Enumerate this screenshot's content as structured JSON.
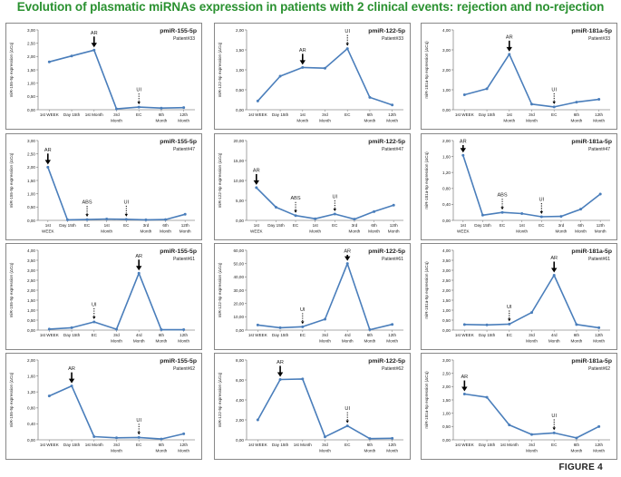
{
  "figure": {
    "title": "Evolution of plasmatic miRNAs expression in patients with 2 clinical events: rejection and no-rejection",
    "label": "FIGURE 4"
  },
  "colors": {
    "line": "#4a7ebb",
    "title": "#2a9130",
    "frame": "#888888",
    "text": "#222222"
  },
  "chart_data": [
    {
      "type": "line",
      "title": "pmiR-155-5p",
      "patient": "Patient#33",
      "ylabel": "miR-155-5p expression (ΔCq)",
      "ylim": [
        0,
        3
      ],
      "yticks": [
        "0,00",
        "0,50",
        "1,00",
        "1,50",
        "2,00",
        "2,50",
        "3,00"
      ],
      "categories": [
        [
          "1st WEEK"
        ],
        [
          "Day 15th"
        ],
        [
          "1st Month"
        ],
        [
          "3rd",
          "Month"
        ],
        [
          "EC"
        ],
        [
          "6th",
          "Month"
        ],
        [
          "12th",
          "Month"
        ]
      ],
      "values": [
        1.8,
        2.02,
        2.24,
        0.03,
        0.1,
        0.06,
        0.08
      ],
      "annotations": [
        {
          "label": "AR",
          "index": 2,
          "dashed": false
        },
        {
          "label": "UI",
          "index": 4,
          "dashed": true
        }
      ]
    },
    {
      "type": "line",
      "title": "pmiR-122-5p",
      "patient": "Patient#33",
      "ylabel": "miR-122-5p expression (ΔCq)",
      "ylim": [
        0,
        2
      ],
      "yticks": [
        "0,00",
        "0,50",
        "1,00",
        "1,50",
        "2,00"
      ],
      "categories": [
        [
          "1st WEEK"
        ],
        [
          "Day 15th"
        ],
        [
          "1st",
          "Month"
        ],
        [
          "3rd",
          "Month"
        ],
        [
          "EC"
        ],
        [
          "6th",
          "Month"
        ],
        [
          "12th",
          "Month"
        ]
      ],
      "values": [
        0.22,
        0.84,
        1.06,
        1.04,
        1.53,
        0.31,
        0.12
      ],
      "annotations": [
        {
          "label": "AR",
          "index": 2,
          "dashed": false
        },
        {
          "label": "UI",
          "index": 4,
          "dashed": true
        }
      ]
    },
    {
      "type": "line",
      "title": "pmiR-181a-5p",
      "patient": "Patient#33",
      "ylabel": "miR-181a-5p expression (ΔCq)",
      "ylim": [
        0,
        4
      ],
      "yticks": [
        "0,00",
        "1,00",
        "2,00",
        "3,00",
        "4,00"
      ],
      "categories": [
        [
          "1st WEEK"
        ],
        [
          "Day 15th"
        ],
        [
          "1st",
          "Month"
        ],
        [
          "3rd",
          "Month"
        ],
        [
          "EC"
        ],
        [
          "6th",
          "Month"
        ],
        [
          "12th",
          "Month"
        ]
      ],
      "values": [
        0.75,
        1.05,
        2.78,
        0.28,
        0.14,
        0.38,
        0.52
      ],
      "annotations": [
        {
          "label": "AR",
          "index": 2,
          "dashed": false
        },
        {
          "label": "UI",
          "index": 4,
          "dashed": true
        }
      ]
    },
    {
      "type": "line",
      "title": "pmiR-155-5p",
      "patient": "Patient#47",
      "ylabel": "miR-155-5p expression (ΔCq)",
      "ylim": [
        0,
        3
      ],
      "yticks": [
        "0,00",
        "0,50",
        "1,00",
        "1,50",
        "2,00",
        "2,50",
        "3,00"
      ],
      "categories": [
        [
          "1st",
          "WEEK"
        ],
        [
          "Day 15th"
        ],
        [
          "EC"
        ],
        [
          "1st",
          "Month"
        ],
        [
          "EC"
        ],
        [
          "3rd",
          "Month"
        ],
        [
          "6th",
          "Month"
        ],
        [
          "12th",
          "Month"
        ]
      ],
      "values": [
        2.0,
        0.02,
        0.03,
        0.05,
        0.04,
        0.02,
        0.03,
        0.23
      ],
      "annotations": [
        {
          "label": "AR",
          "index": 0,
          "dashed": false
        },
        {
          "label": "ABS",
          "index": 2,
          "dashed": true
        },
        {
          "label": "UI",
          "index": 4,
          "dashed": true
        }
      ]
    },
    {
      "type": "line",
      "title": "pmiR-122-5p",
      "patient": "Patient#47",
      "ylabel": "miR-122-5p expression (ΔCq)",
      "ylim": [
        0,
        20
      ],
      "yticks": [
        "0,00",
        "5,00",
        "10,00",
        "15,00",
        "20,00"
      ],
      "categories": [
        [
          "1st",
          "WEEK"
        ],
        [
          "Day 15th"
        ],
        [
          "EC"
        ],
        [
          "1st",
          "Month"
        ],
        [
          "EC"
        ],
        [
          "3rd",
          "Month"
        ],
        [
          "6th",
          "Month"
        ],
        [
          "12th",
          "Month"
        ]
      ],
      "values": [
        8.2,
        3.3,
        1.2,
        0.4,
        1.6,
        0.3,
        2.2,
        3.8
      ],
      "annotations": [
        {
          "label": "AR",
          "index": 0,
          "dashed": false
        },
        {
          "label": "ABS",
          "index": 2,
          "dashed": true
        },
        {
          "label": "UI",
          "index": 4,
          "dashed": true
        }
      ]
    },
    {
      "type": "line",
      "title": "pmiR-181a-5p",
      "patient": "Patient#47",
      "ylabel": "miR-181a-5p expression (ΔCq)",
      "ylim": [
        0,
        2
      ],
      "yticks": [
        "0,00",
        "0,40",
        "0,80",
        "1,20",
        "1,60",
        "2,00"
      ],
      "categories": [
        [
          "1st",
          "WEEK"
        ],
        [
          "Day 15th"
        ],
        [
          "EC"
        ],
        [
          "1st",
          "Month"
        ],
        [
          "EC"
        ],
        [
          "3rd",
          "Month"
        ],
        [
          "6th",
          "Month"
        ],
        [
          "12th",
          "Month"
        ]
      ],
      "values": [
        1.63,
        0.13,
        0.2,
        0.17,
        0.09,
        0.1,
        0.28,
        0.66
      ],
      "annotations": [
        {
          "label": "AR",
          "index": 0,
          "dashed": false
        },
        {
          "label": "ABS",
          "index": 2,
          "dashed": true
        },
        {
          "label": "UI",
          "index": 4,
          "dashed": true
        }
      ]
    },
    {
      "type": "line",
      "title": "pmiR-155-5p",
      "patient": "Patient#61",
      "ylabel": "miR-155-5p expression (ΔCq)",
      "ylim": [
        0,
        4
      ],
      "yticks": [
        "0,00",
        "0,50",
        "1,00",
        "1,50",
        "2,00",
        "2,50",
        "3,00",
        "3,50",
        "4,00"
      ],
      "categories": [
        [
          "1st WEEK"
        ],
        [
          "Day 15th"
        ],
        [
          "EC"
        ],
        [
          "3rd",
          "Month"
        ],
        [
          "4rd",
          "Month"
        ],
        [
          "6th",
          "Month"
        ],
        [
          "12th",
          "Month"
        ]
      ],
      "values": [
        0.05,
        0.12,
        0.41,
        0.04,
        2.85,
        0.02,
        0.02
      ],
      "annotations": [
        {
          "label": "UI",
          "index": 2,
          "dashed": true
        },
        {
          "label": "AR",
          "index": 4,
          "dashed": false
        }
      ]
    },
    {
      "type": "line",
      "title": "pmiR-122-5p",
      "patient": "Patient#61",
      "ylabel": "miR-122-5p expression (ΔCq)",
      "ylim": [
        0,
        60
      ],
      "yticks": [
        "0,00",
        "10,00",
        "20,00",
        "30,00",
        "40,00",
        "50,00",
        "60,00"
      ],
      "categories": [
        [
          "1st WEEK"
        ],
        [
          "Day 15th"
        ],
        [
          "EC"
        ],
        [
          "3rd",
          "Month"
        ],
        [
          "4rd",
          "Month"
        ],
        [
          "6th",
          "Month"
        ],
        [
          "12th",
          "Month"
        ]
      ],
      "values": [
        3.8,
        1.8,
        2.5,
        8.2,
        50.0,
        0.3,
        4.3
      ],
      "annotations": [
        {
          "label": "UI",
          "index": 2,
          "dashed": true
        },
        {
          "label": "AR",
          "index": 4,
          "dashed": false
        }
      ]
    },
    {
      "type": "line",
      "title": "pmiR-181a-5p",
      "patient": "Patient#61",
      "ylabel": "miR-181a-5p expression (ΔCq)",
      "ylim": [
        0,
        4
      ],
      "yticks": [
        "0,00",
        "0,50",
        "1,00",
        "1,50",
        "2,00",
        "2,50",
        "3,00",
        "3,50",
        "4,00"
      ],
      "categories": [
        [
          "1st WEEK"
        ],
        [
          "Day 15th"
        ],
        [
          "EC"
        ],
        [
          "3rd",
          "Month"
        ],
        [
          "4rd",
          "Month"
        ],
        [
          "6th",
          "Month"
        ],
        [
          "12th",
          "Month"
        ]
      ],
      "values": [
        0.28,
        0.26,
        0.3,
        0.88,
        2.75,
        0.28,
        0.12
      ],
      "annotations": [
        {
          "label": "UI",
          "index": 2,
          "dashed": true
        },
        {
          "label": "AR",
          "index": 4,
          "dashed": false
        }
      ]
    },
    {
      "type": "line",
      "title": "pmiR-155-5p",
      "patient": "Patient#62",
      "ylabel": "miR-155-5p expression (ΔCq)",
      "ylim": [
        0,
        2
      ],
      "yticks": [
        "0,00",
        "0,40",
        "0,80",
        "1,20",
        "1,60",
        "2,00"
      ],
      "categories": [
        [
          "1st WEEK"
        ],
        [
          "Day 15th"
        ],
        [
          "1st Month"
        ],
        [
          "3rd",
          "Month"
        ],
        [
          "EC"
        ],
        [
          "6th",
          "Month"
        ],
        [
          "12th",
          "Month"
        ]
      ],
      "values": [
        1.1,
        1.35,
        0.08,
        0.05,
        0.06,
        0.02,
        0.15
      ],
      "annotations": [
        {
          "label": "AR",
          "index": 1,
          "dashed": false
        },
        {
          "label": "UI",
          "index": 4,
          "dashed": true
        }
      ]
    },
    {
      "type": "line",
      "title": "pmiR-122-5p",
      "patient": "Patient#62",
      "ylabel": "miR-122-5p expression (ΔCq)",
      "ylim": [
        0,
        8
      ],
      "yticks": [
        "0,00",
        "2,00",
        "4,00",
        "6,00",
        "8,00"
      ],
      "categories": [
        [
          "1st WEEK"
        ],
        [
          "Day 15th"
        ],
        [
          "1st Month"
        ],
        [
          "3rd",
          "Month"
        ],
        [
          "EC"
        ],
        [
          "6th",
          "Month"
        ],
        [
          "12th",
          "Month"
        ]
      ],
      "values": [
        2.0,
        6.05,
        6.1,
        0.3,
        1.4,
        0.12,
        0.15
      ],
      "annotations": [
        {
          "label": "AR",
          "index": 1,
          "dashed": false
        },
        {
          "label": "UI",
          "index": 4,
          "dashed": true
        }
      ]
    },
    {
      "type": "line",
      "title": "pmiR-181a-5p",
      "patient": "Patient#62",
      "ylabel": "miR-181a-5p expression (ΔCq)",
      "ylim": [
        0,
        3
      ],
      "yticks": [
        "0,00",
        "0,50",
        "1,00",
        "1,50",
        "2,00",
        "2,50",
        "3,00"
      ],
      "categories": [
        [
          "1st WEEK"
        ],
        [
          "Day 15th"
        ],
        [
          "1st Month"
        ],
        [
          "3rd",
          "Month"
        ],
        [
          "EC"
        ],
        [
          "6th",
          "Month"
        ],
        [
          "12th",
          "Month"
        ]
      ],
      "values": [
        1.72,
        1.6,
        0.56,
        0.2,
        0.26,
        0.07,
        0.5
      ],
      "annotations": [
        {
          "label": "AR",
          "index": 0,
          "dashed": false
        },
        {
          "label": "UI",
          "index": 4,
          "dashed": true
        }
      ]
    }
  ]
}
